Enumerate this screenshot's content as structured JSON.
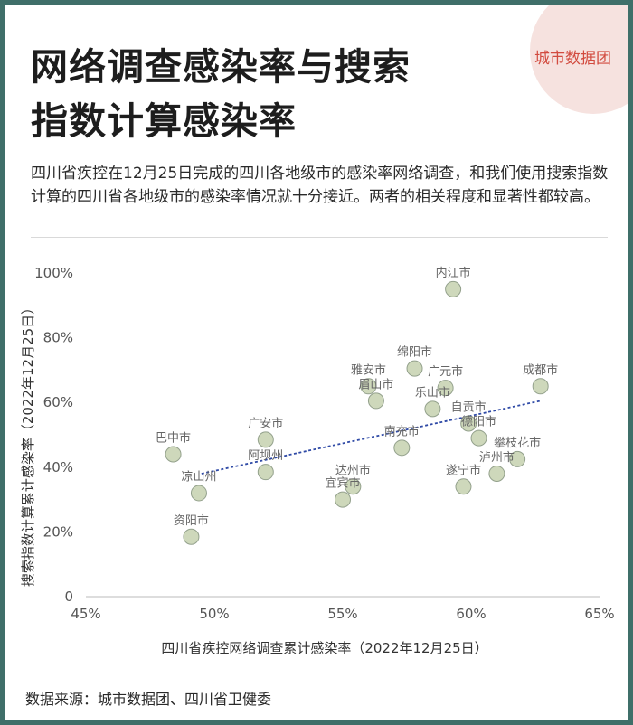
{
  "title_lines": [
    "网络调查感染率与搜索",
    "指数计算感染率"
  ],
  "brand": "城市数据团",
  "description": "四川省疾控在12月25日完成的四川各地级市的感染率网络调查，和我们使用搜索指数计算的四川省各地级市的感染率情况就十分接近。两者的相关程度和显著性都较高。",
  "source": "数据来源：城市数据团、四川省卫健委",
  "colors": {
    "point_fill": "#ccd6b8",
    "point_stroke": "#8e9c86",
    "trend": "#2f4aa6",
    "background": "#3f6f69"
  },
  "chart_data": {
    "type": "scatter",
    "xlabel": "四川省疾控网络调查累计感染率（2022年12月25日）",
    "ylabel": "搜索指数计算累计感染率（2022年12月25日）",
    "xlim": [
      45,
      65
    ],
    "ylim": [
      0,
      100
    ],
    "x_ticks": [
      "45%",
      "50%",
      "55%",
      "60%",
      "65%"
    ],
    "y_ticks": [
      "0",
      "20%",
      "40%",
      "60%",
      "80%",
      "100%"
    ],
    "grid": false,
    "trendline": {
      "x": [
        49.5,
        62.7
      ],
      "y": [
        38,
        60.5
      ]
    },
    "points": [
      {
        "name": "内江市",
        "x": 59.3,
        "y": 95
      },
      {
        "name": "绵阳市",
        "x": 57.8,
        "y": 70.5
      },
      {
        "name": "雅安市",
        "x": 56.0,
        "y": 65
      },
      {
        "name": "眉山市",
        "x": 56.3,
        "y": 60.5
      },
      {
        "name": "广元市",
        "x": 59.0,
        "y": 64.5
      },
      {
        "name": "成都市",
        "x": 62.7,
        "y": 65
      },
      {
        "name": "乐山市",
        "x": 58.5,
        "y": 58
      },
      {
        "name": "自贡市",
        "x": 59.9,
        "y": 53.5
      },
      {
        "name": "德阳市",
        "x": 60.3,
        "y": 49
      },
      {
        "name": "南充市",
        "x": 57.3,
        "y": 46
      },
      {
        "name": "攀枝花市",
        "x": 61.8,
        "y": 42.5
      },
      {
        "name": "泸州市",
        "x": 61.0,
        "y": 38
      },
      {
        "name": "遂宁市",
        "x": 59.7,
        "y": 34
      },
      {
        "name": "达州市",
        "x": 55.4,
        "y": 34
      },
      {
        "name": "宜宾市",
        "x": 55.0,
        "y": 30
      },
      {
        "name": "广安市",
        "x": 52.0,
        "y": 48.5
      },
      {
        "name": "阿坝州",
        "x": 52.0,
        "y": 38.5
      },
      {
        "name": "巴中市",
        "x": 48.4,
        "y": 44
      },
      {
        "name": "凉山州",
        "x": 49.4,
        "y": 32
      },
      {
        "name": "资阳市",
        "x": 49.1,
        "y": 18.5
      }
    ]
  }
}
